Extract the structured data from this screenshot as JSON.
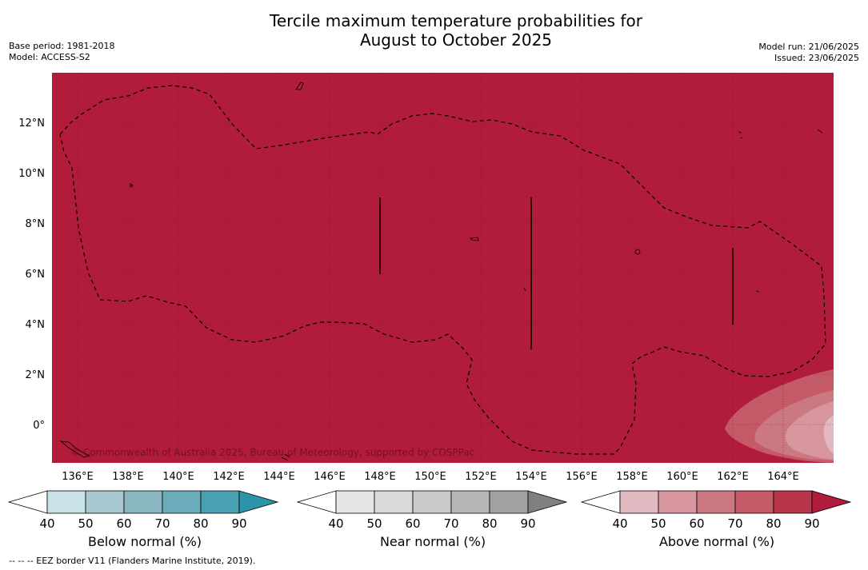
{
  "title_line1": "Tercile maximum temperature probabilities for",
  "title_line2": "August to October 2025",
  "base_period": "Base period: 1981-2018",
  "model": "Model: ACCESS-S2",
  "model_run": "Model run: 21/06/2025",
  "issued": "Issued: 23/06/2025",
  "copyright": "© Commonwealth of Australia 2025, Bureau of Meteorology, supported by COSPPac",
  "footer": "--  --  -- EEZ border V11 (Flanders Marine Institute, 2019).",
  "map": {
    "fill_color": "#b21c3b",
    "x_ticks": [
      "136°E",
      "138°E",
      "140°E",
      "142°E",
      "144°E",
      "146°E",
      "148°E",
      "150°E",
      "152°E",
      "154°E",
      "156°E",
      "158°E",
      "160°E",
      "162°E",
      "164°E"
    ],
    "y_ticks": [
      "12°N",
      "10°N",
      "8°N",
      "6°N",
      "4°N",
      "2°N",
      "0°"
    ]
  },
  "colorbars": [
    {
      "title": "Below normal (%)",
      "ticks": [
        "40",
        "50",
        "60",
        "70",
        "80",
        "90"
      ],
      "colors": [
        "#ffffff",
        "#c9e2e8",
        "#a8c8cf",
        "#8ab6c1",
        "#6aacba",
        "#49a0b1",
        "#2b94a8"
      ]
    },
    {
      "title": "Near normal (%)",
      "ticks": [
        "40",
        "50",
        "60",
        "70",
        "80",
        "90"
      ],
      "colors": [
        "#ffffff",
        "#e6e6e6",
        "#d9d9d9",
        "#cacaca",
        "#b6b6b6",
        "#a2a2a2",
        "#808080"
      ]
    },
    {
      "title": "Above normal (%)",
      "ticks": [
        "40",
        "50",
        "60",
        "70",
        "80",
        "90"
      ],
      "colors": [
        "#ffffff",
        "#e2b9c0",
        "#d7959e",
        "#cc7880",
        "#c45a68",
        "#b83449",
        "#b01c3b"
      ]
    }
  ]
}
